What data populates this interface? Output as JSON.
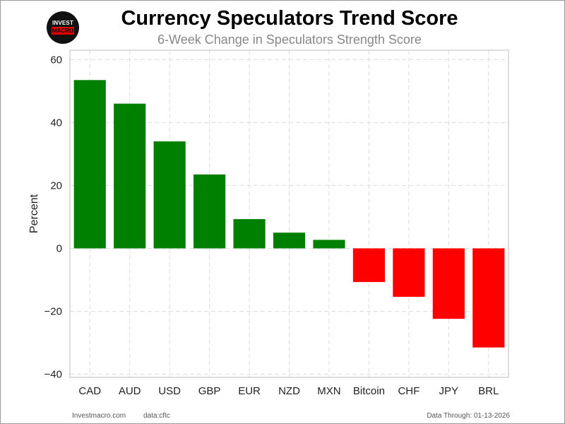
{
  "logo": {
    "top_text": "INVEST",
    "bottom_text": "MACRO"
  },
  "chart_data": {
    "type": "bar",
    "title": "Currency Speculators Trend Score",
    "subtitle": "6-Week Change in Speculators Strength Score",
    "xlabel": "",
    "ylabel": "Percent",
    "categories": [
      "CAD",
      "AUD",
      "USD",
      "GBP",
      "EUR",
      "NZD",
      "MXN",
      "Bitcoin",
      "CHF",
      "JPY",
      "BRL"
    ],
    "values": [
      53.5,
      46.0,
      34.0,
      23.5,
      9.3,
      5.0,
      2.7,
      -10.7,
      -15.4,
      -22.4,
      -31.5
    ],
    "ylim": [
      -41,
      63
    ],
    "yticks": [
      60,
      40,
      20,
      0,
      -20,
      -40
    ],
    "ytick_labels": [
      "60",
      "40",
      "20",
      "0",
      "−20",
      "−40"
    ],
    "grid": true,
    "positive_color": "#008000",
    "negative_color": "#ff0000"
  },
  "footer": {
    "site": "Investmacro.com",
    "source": "data:cftc",
    "data_through": "Data Through: 01-13-2026"
  }
}
